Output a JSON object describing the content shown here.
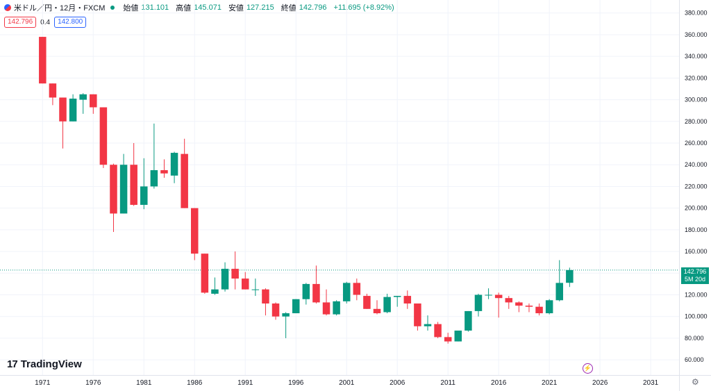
{
  "header": {
    "title": "米ドル／円・12月・FXCM",
    "open_label": "始値",
    "open": "131.101",
    "high_label": "高値",
    "high": "145.071",
    "low_label": "安値",
    "low": "127.215",
    "close_label": "終値",
    "close": "142.796",
    "change": "+11.695 (+8.92%)",
    "sell": "142.796",
    "spread": "0.4",
    "buy": "142.800"
  },
  "price_tag": {
    "price": "142.796",
    "countdown": "5M 20d"
  },
  "logo": {
    "mark": "17",
    "name": "TradingView"
  },
  "colors": {
    "up": "#089981",
    "down": "#f23645",
    "grid": "#f0f3fa",
    "axis_text": "#131722",
    "last_line": "#089981"
  },
  "chart_data": {
    "type": "candlestick",
    "y_ticks": [
      "60.000",
      "80.000",
      "100.000",
      "120.000",
      "140.000",
      "160.000",
      "180.000",
      "200.000",
      "220.000",
      "240.000",
      "260.000",
      "280.000",
      "300.000",
      "320.000",
      "340.000",
      "360.000",
      "380.000"
    ],
    "ylim": [
      46,
      392
    ],
    "x_ticks": [
      "1971",
      "1976",
      "1981",
      "1986",
      "1991",
      "1996",
      "2001",
      "2006",
      "2011",
      "2016",
      "2021",
      "2026",
      "2031"
    ],
    "xlim": [
      1966.8,
      2033.8
    ],
    "last_price": 142.796,
    "candles": [
      {
        "t": 1971,
        "o": 358,
        "h": 358,
        "l": 315,
        "c": 315
      },
      {
        "t": 1972,
        "o": 315,
        "h": 315,
        "l": 295,
        "c": 302
      },
      {
        "t": 1973,
        "o": 302,
        "h": 302,
        "l": 255,
        "c": 280
      },
      {
        "t": 1974,
        "o": 280,
        "h": 305,
        "l": 280,
        "c": 301
      },
      {
        "t": 1975,
        "o": 300,
        "h": 306,
        "l": 287,
        "c": 305
      },
      {
        "t": 1976,
        "o": 305,
        "h": 305,
        "l": 287,
        "c": 293
      },
      {
        "t": 1977,
        "o": 293,
        "h": 293,
        "l": 237,
        "c": 240
      },
      {
        "t": 1978,
        "o": 240,
        "h": 241,
        "l": 178,
        "c": 195
      },
      {
        "t": 1979,
        "o": 195,
        "h": 250,
        "l": 195,
        "c": 240
      },
      {
        "t": 1980,
        "o": 240,
        "h": 260,
        "l": 202,
        "c": 203
      },
      {
        "t": 1981,
        "o": 203,
        "h": 246,
        "l": 199,
        "c": 220
      },
      {
        "t": 1982,
        "o": 220,
        "h": 278,
        "l": 218,
        "c": 235
      },
      {
        "t": 1983,
        "o": 235,
        "h": 245,
        "l": 228,
        "c": 232
      },
      {
        "t": 1984,
        "o": 230,
        "h": 252,
        "l": 223,
        "c": 251
      },
      {
        "t": 1985,
        "o": 250,
        "h": 264,
        "l": 200,
        "c": 200
      },
      {
        "t": 1986,
        "o": 200,
        "h": 200,
        "l": 152,
        "c": 158
      },
      {
        "t": 1987,
        "o": 158,
        "h": 158,
        "l": 121,
        "c": 122
      },
      {
        "t": 1988,
        "o": 121,
        "h": 136,
        "l": 120,
        "c": 125
      },
      {
        "t": 1989,
        "o": 125,
        "h": 150,
        "l": 123,
        "c": 144
      },
      {
        "t": 1990,
        "o": 144,
        "h": 160,
        "l": 125,
        "c": 135
      },
      {
        "t": 1991,
        "o": 135,
        "h": 141,
        "l": 125,
        "c": 125
      },
      {
        "t": 1992,
        "o": 125,
        "h": 135,
        "l": 119,
        "c": 125
      },
      {
        "t": 1993,
        "o": 125,
        "h": 126,
        "l": 101,
        "c": 112
      },
      {
        "t": 1994,
        "o": 112,
        "h": 113,
        "l": 97,
        "c": 100
      },
      {
        "t": 1995,
        "o": 100,
        "h": 104,
        "l": 80,
        "c": 103
      },
      {
        "t": 1996,
        "o": 103,
        "h": 116,
        "l": 103,
        "c": 116
      },
      {
        "t": 1997,
        "o": 116,
        "h": 131,
        "l": 111,
        "c": 130
      },
      {
        "t": 1998,
        "o": 130,
        "h": 147,
        "l": 112,
        "c": 113
      },
      {
        "t": 1999,
        "o": 113,
        "h": 125,
        "l": 101,
        "c": 102
      },
      {
        "t": 2000,
        "o": 102,
        "h": 115,
        "l": 101,
        "c": 114
      },
      {
        "t": 2001,
        "o": 114,
        "h": 132,
        "l": 112,
        "c": 131
      },
      {
        "t": 2002,
        "o": 131,
        "h": 135,
        "l": 115,
        "c": 120
      },
      {
        "t": 2003,
        "o": 119,
        "h": 121,
        "l": 107,
        "c": 107
      },
      {
        "t": 2004,
        "o": 107,
        "h": 115,
        "l": 102,
        "c": 103
      },
      {
        "t": 2005,
        "o": 104,
        "h": 121,
        "l": 103,
        "c": 118
      },
      {
        "t": 2006,
        "o": 118,
        "h": 119,
        "l": 109,
        "c": 119
      },
      {
        "t": 2007,
        "o": 119,
        "h": 124,
        "l": 107,
        "c": 112
      },
      {
        "t": 2008,
        "o": 112,
        "h": 112,
        "l": 87,
        "c": 91
      },
      {
        "t": 2009,
        "o": 91,
        "h": 101,
        "l": 87,
        "c": 93
      },
      {
        "t": 2010,
        "o": 93,
        "h": 95,
        "l": 80,
        "c": 81
      },
      {
        "t": 2011,
        "o": 81,
        "h": 85,
        "l": 75,
        "c": 77
      },
      {
        "t": 2012,
        "o": 77,
        "h": 86,
        "l": 77,
        "c": 87
      },
      {
        "t": 2013,
        "o": 87,
        "h": 105,
        "l": 86,
        "c": 105
      },
      {
        "t": 2014,
        "o": 105,
        "h": 121,
        "l": 100,
        "c": 120
      },
      {
        "t": 2015,
        "o": 120,
        "h": 126,
        "l": 116,
        "c": 120
      },
      {
        "t": 2016,
        "o": 120,
        "h": 122,
        "l": 99,
        "c": 117
      },
      {
        "t": 2017,
        "o": 117,
        "h": 119,
        "l": 107,
        "c": 113
      },
      {
        "t": 2018,
        "o": 113,
        "h": 114,
        "l": 104,
        "c": 110
      },
      {
        "t": 2019,
        "o": 110,
        "h": 112,
        "l": 104,
        "c": 109
      },
      {
        "t": 2020,
        "o": 109,
        "h": 112,
        "l": 101,
        "c": 103
      },
      {
        "t": 2021,
        "o": 103,
        "h": 116,
        "l": 102,
        "c": 115
      },
      {
        "t": 2022,
        "o": 115,
        "h": 152,
        "l": 114,
        "c": 131
      },
      {
        "t": 2023,
        "o": 131.101,
        "h": 145.071,
        "l": 127.215,
        "c": 142.796
      }
    ]
  }
}
